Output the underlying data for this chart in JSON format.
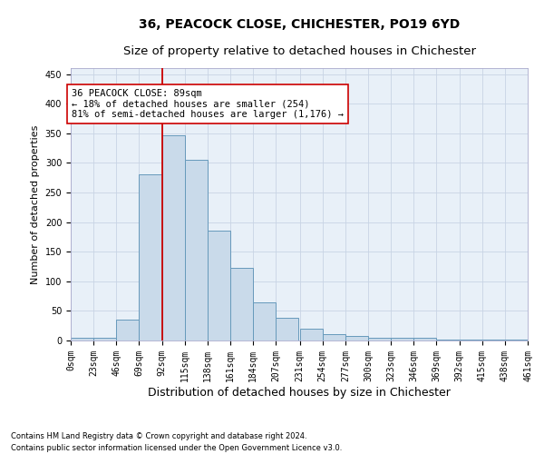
{
  "title1": "36, PEACOCK CLOSE, CHICHESTER, PO19 6YD",
  "title2": "Size of property relative to detached houses in Chichester",
  "xlabel": "Distribution of detached houses by size in Chichester",
  "ylabel": "Number of detached properties",
  "bin_edges": [
    0,
    23,
    46,
    69,
    92,
    115,
    138,
    161,
    184,
    207,
    231,
    254,
    277,
    300,
    323,
    346,
    369,
    392,
    415,
    438,
    461
  ],
  "tick_labels": [
    "0sqm",
    "23sqm",
    "46sqm",
    "69sqm",
    "92sqm",
    "115sqm",
    "138sqm",
    "161sqm",
    "184sqm",
    "207sqm",
    "231sqm",
    "254sqm",
    "277sqm",
    "300sqm",
    "323sqm",
    "346sqm",
    "369sqm",
    "392sqm",
    "415sqm",
    "438sqm",
    "461sqm"
  ],
  "bar_heights": [
    4,
    5,
    35,
    280,
    346,
    305,
    185,
    123,
    65,
    38,
    20,
    11,
    7,
    5,
    5,
    5,
    2,
    2,
    2,
    2
  ],
  "bar_color": "#c9daea",
  "bar_edge_color": "#6699bb",
  "vline_x": 92,
  "vline_color": "#cc0000",
  "annotation_text": "36 PEACOCK CLOSE: 89sqm\n← 18% of detached houses are smaller (254)\n81% of semi-detached houses are larger (1,176) →",
  "annotation_box_color": "#ffffff",
  "annotation_box_edge": "#cc0000",
  "ylim": [
    0,
    460
  ],
  "yticks": [
    0,
    50,
    100,
    150,
    200,
    250,
    300,
    350,
    400,
    450
  ],
  "footer1": "Contains HM Land Registry data © Crown copyright and database right 2024.",
  "footer2": "Contains public sector information licensed under the Open Government Licence v3.0.",
  "background_color": "#ffffff",
  "plot_bg_color": "#e8f0f8",
  "grid_color": "#c8d4e4",
  "title1_fontsize": 10,
  "title2_fontsize": 9.5,
  "xlabel_fontsize": 9,
  "ylabel_fontsize": 8,
  "tick_fontsize": 7,
  "annotation_fontsize": 7.5,
  "footer_fontsize": 6
}
